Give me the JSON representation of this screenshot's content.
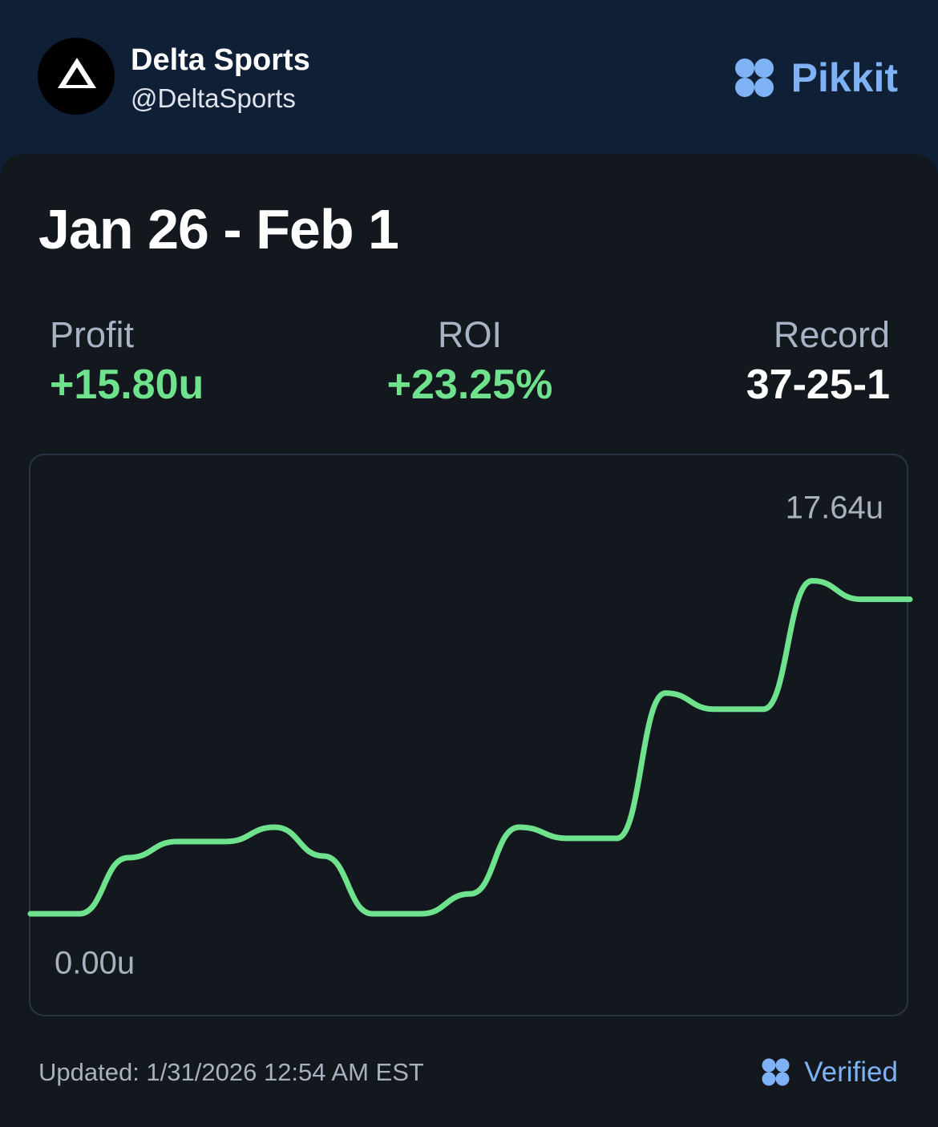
{
  "header": {
    "name": "Delta Sports",
    "handle": "@DeltaSports",
    "brand": "Pikkit"
  },
  "title": "Jan 26 - Feb 1",
  "stats": [
    {
      "label": "Profit",
      "value": "+15.80u"
    },
    {
      "label": "ROI",
      "value": "+23.25%"
    },
    {
      "label": "Record",
      "value": "37-25-1"
    }
  ],
  "chart_data": {
    "type": "line",
    "values": [
      0,
      0,
      2.82,
      3.63,
      3.63,
      4.35,
      2.9,
      0,
      0,
      1.0,
      4.35,
      3.79,
      3.79,
      11.09,
      10.28,
      10.28,
      16.73,
      15.8,
      15.8
    ],
    "color": "#6ee28c",
    "ylim": [
      0,
      17.64
    ],
    "yticks": [
      {
        "value": 0,
        "label": "0.00u"
      },
      {
        "value": 17.64,
        "label": "17.64u"
      }
    ]
  },
  "footer": {
    "updated": "Updated: 1/31/2026 12:54 AM EST",
    "verified": "Verified"
  }
}
